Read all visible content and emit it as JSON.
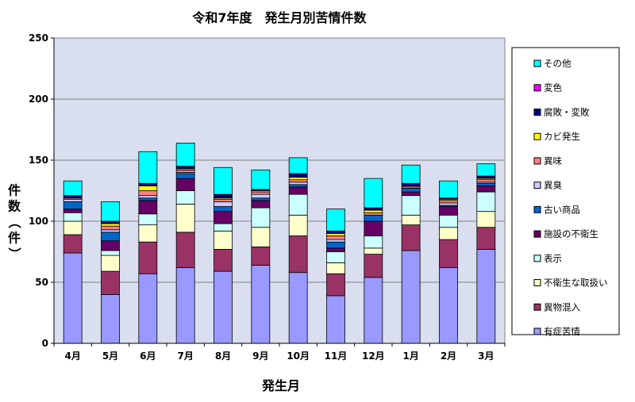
{
  "chart_data": {
    "type": "bar",
    "stacked": true,
    "title": "令和7年度　発生月別苦情件数",
    "xlabel": "発生月",
    "ylabel": "件数（件）",
    "ylim": [
      0,
      250
    ],
    "yticks": [
      0,
      50,
      100,
      150,
      200,
      250
    ],
    "grid": true,
    "legend_position": "right",
    "categories": [
      "4月",
      "5月",
      "6月",
      "7月",
      "8月",
      "9月",
      "10月",
      "11月",
      "12月",
      "1月",
      "2月",
      "3月"
    ],
    "series": [
      {
        "name": "有症苦情",
        "color": "#9999FF",
        "values": [
          74,
          40,
          57,
          62,
          59,
          64,
          58,
          39,
          54,
          76,
          62,
          77
        ]
      },
      {
        "name": "異物混入",
        "color": "#993366",
        "values": [
          15,
          19,
          26,
          29,
          18,
          15,
          30,
          18,
          19,
          21,
          23,
          18
        ]
      },
      {
        "name": "不衛生な取扱い",
        "color": "#FFFFCC",
        "values": [
          11,
          13,
          14,
          23,
          15,
          16,
          17,
          9,
          5,
          8,
          10,
          13
        ]
      },
      {
        "name": "表示",
        "color": "#CCFFFF",
        "values": [
          7,
          4,
          9,
          11,
          6,
          16,
          17,
          9,
          10,
          16,
          10,
          16
        ]
      },
      {
        "name": "施設の不衛生",
        "color": "#660066",
        "values": [
          3,
          8,
          11,
          10,
          10,
          6,
          6,
          3,
          12,
          3,
          7,
          5
        ]
      },
      {
        "name": "古い商品",
        "color": "#0066CC",
        "values": [
          6,
          7,
          2,
          4,
          4,
          2,
          2,
          5,
          5,
          3,
          1,
          2
        ]
      },
      {
        "name": "異臭",
        "color": "#CCCCFF",
        "values": [
          2,
          2,
          2,
          1,
          4,
          3,
          2,
          2,
          0,
          1,
          2,
          1
        ]
      },
      {
        "name": "異味",
        "color": "#FF8080",
        "values": [
          1,
          3,
          4,
          2,
          2,
          2,
          2,
          3,
          2,
          1,
          2,
          2
        ]
      },
      {
        "name": "カビ発生",
        "color": "#FFFF00",
        "values": [
          0,
          2,
          4,
          1,
          1,
          1,
          2,
          2,
          2,
          0,
          1,
          1
        ]
      },
      {
        "name": "腐敗・変敗",
        "color": "#000080",
        "values": [
          2,
          2,
          2,
          2,
          3,
          1,
          3,
          2,
          2,
          2,
          1,
          2
        ]
      },
      {
        "name": "変色",
        "color": "#FF00FF",
        "values": [
          0,
          0,
          0,
          0,
          0,
          0,
          0,
          0,
          0,
          0,
          0,
          0
        ]
      },
      {
        "name": "その他",
        "color": "#00FFFF",
        "values": [
          12,
          16,
          26,
          19,
          22,
          16,
          13,
          18,
          24,
          15,
          14,
          10
        ]
      }
    ]
  }
}
